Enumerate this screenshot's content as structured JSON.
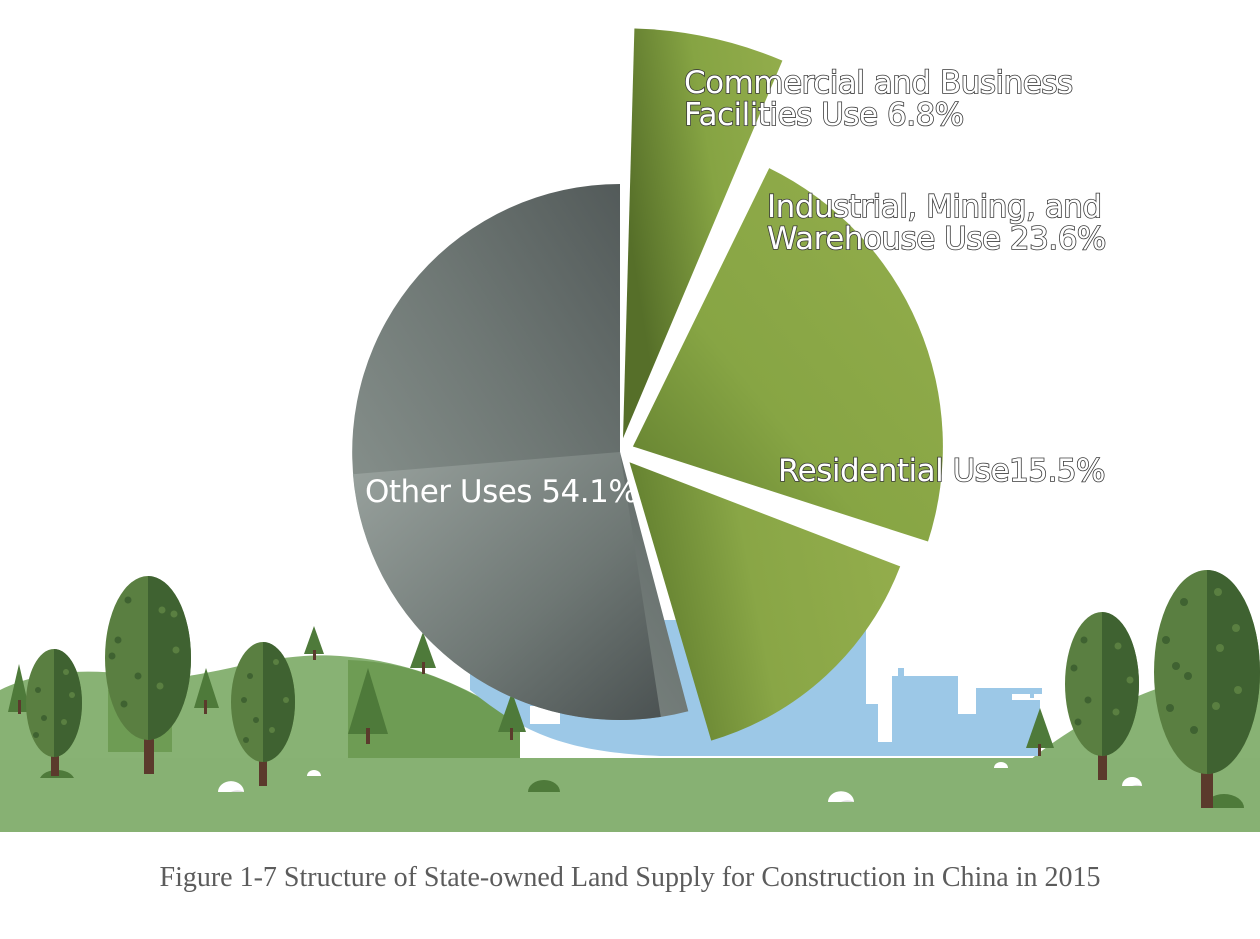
{
  "chart_data": {
    "type": "pie",
    "slices": [
      {
        "name": "Commercial and Business Facilities Use",
        "value": 6.8,
        "label_lines": [
          "Commercial and Business",
          "Facilities Use 6.8%"
        ],
        "exploded": true
      },
      {
        "name": "Industrial, Mining, and Warehouse Use",
        "value": 23.6,
        "label_lines": [
          "Industrial, Mining, and",
          "Warehouse Use 23.6%"
        ],
        "exploded": true
      },
      {
        "name": "Residential Use",
        "value": 15.5,
        "label_lines": [
          "Residential Use15.5%"
        ],
        "exploded": true
      },
      {
        "name": "Other Uses",
        "value": 54.1,
        "label_lines": [
          "Other Uses 54.1%"
        ],
        "exploded": false
      }
    ],
    "colors": {
      "green_light": "#93ad4c",
      "green_dark": "#5d7a2c",
      "gray_light": "#949e99",
      "gray_dark": "#4b5252"
    },
    "title": ""
  },
  "caption": "Figure 1-7 Structure of State-owned Land Supply for Construction in China in 2015",
  "scenery": {
    "grass_color": "#87b173",
    "hill_color": "#6e9c54",
    "city_color": "#9cc8e7",
    "tree_light": "#5a7f41",
    "tree_dark": "#3f6231"
  }
}
